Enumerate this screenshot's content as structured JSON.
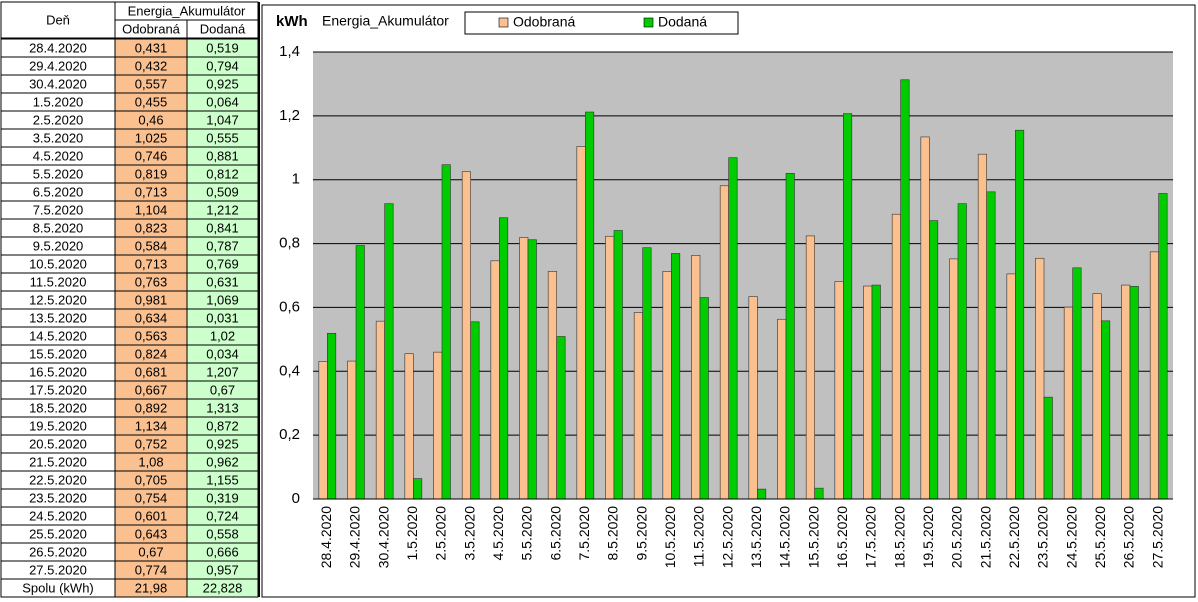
{
  "table": {
    "day_header": "Deň",
    "total_label": "Spolu (kWh)",
    "totals": [
      "21,98",
      "22,828"
    ]
  },
  "chart_data": {
    "type": "bar",
    "title": "Energia_Akumulátor",
    "y_label": "kWh",
    "categories": [
      "28.4.2020",
      "29.4.2020",
      "30.4.2020",
      "1.5.2020",
      "2.5.2020",
      "3.5.2020",
      "4.5.2020",
      "5.5.2020",
      "6.5.2020",
      "7.5.2020",
      "8.5.2020",
      "9.5.2020",
      "10.5.2020",
      "11.5.2020",
      "12.5.2020",
      "13.5.2020",
      "14.5.2020",
      "15.5.2020",
      "16.5.2020",
      "17.5.2020",
      "18.5.2020",
      "19.5.2020",
      "20.5.2020",
      "21.5.2020",
      "22.5.2020",
      "23.5.2020",
      "24.5.2020",
      "25.5.2020",
      "26.5.2020",
      "27.5.2020"
    ],
    "series": [
      {
        "name": "Odobraná",
        "color": "#fac090",
        "values": [
          0.431,
          0.432,
          0.557,
          0.455,
          0.46,
          1.025,
          0.746,
          0.819,
          0.713,
          1.104,
          0.823,
          0.584,
          0.713,
          0.763,
          0.981,
          0.634,
          0.563,
          0.824,
          0.681,
          0.667,
          0.892,
          1.134,
          0.752,
          1.08,
          0.705,
          0.754,
          0.601,
          0.643,
          0.67,
          0.774
        ],
        "value_labels": [
          "0,431",
          "0,432",
          "0,557",
          "0,455",
          "0,46",
          "1,025",
          "0,746",
          "0,819",
          "0,713",
          "1,104",
          "0,823",
          "0,584",
          "0,713",
          "0,763",
          "0,981",
          "0,634",
          "0,563",
          "0,824",
          "0,681",
          "0,667",
          "0,892",
          "1,134",
          "0,752",
          "1,08",
          "0,705",
          "0,754",
          "0,601",
          "0,643",
          "0,67",
          "0,774"
        ]
      },
      {
        "name": "Dodaná",
        "color": "#00cc00",
        "values": [
          0.519,
          0.794,
          0.925,
          0.064,
          1.047,
          0.555,
          0.881,
          0.812,
          0.509,
          1.212,
          0.841,
          0.787,
          0.769,
          0.631,
          1.069,
          0.031,
          1.02,
          0.034,
          1.207,
          0.67,
          1.313,
          0.872,
          0.925,
          0.962,
          1.155,
          0.319,
          0.724,
          0.558,
          0.666,
          0.957
        ],
        "value_labels": [
          "0,519",
          "0,794",
          "0,925",
          "0,064",
          "1,047",
          "0,555",
          "0,881",
          "0,812",
          "0,509",
          "1,212",
          "0,841",
          "0,787",
          "0,769",
          "0,631",
          "1,069",
          "0,031",
          "1,02",
          "0,034",
          "1,207",
          "0,67",
          "1,313",
          "0,872",
          "0,925",
          "0,962",
          "1,155",
          "0,319",
          "0,724",
          "0,558",
          "0,666",
          "0,957"
        ]
      }
    ],
    "ylim": [
      0,
      1.4
    ],
    "yticks": [
      0,
      {
        "value": 0.2,
        "label": "0,2"
      },
      {
        "value": 0.4,
        "label": "0,4"
      },
      {
        "value": 0.6,
        "label": "0,6"
      },
      {
        "value": 0.8,
        "label": "0,8"
      },
      1,
      {
        "value": 1.2,
        "label": "1,2"
      },
      {
        "value": 1.4,
        "label": "1,4"
      }
    ],
    "grid": true
  }
}
